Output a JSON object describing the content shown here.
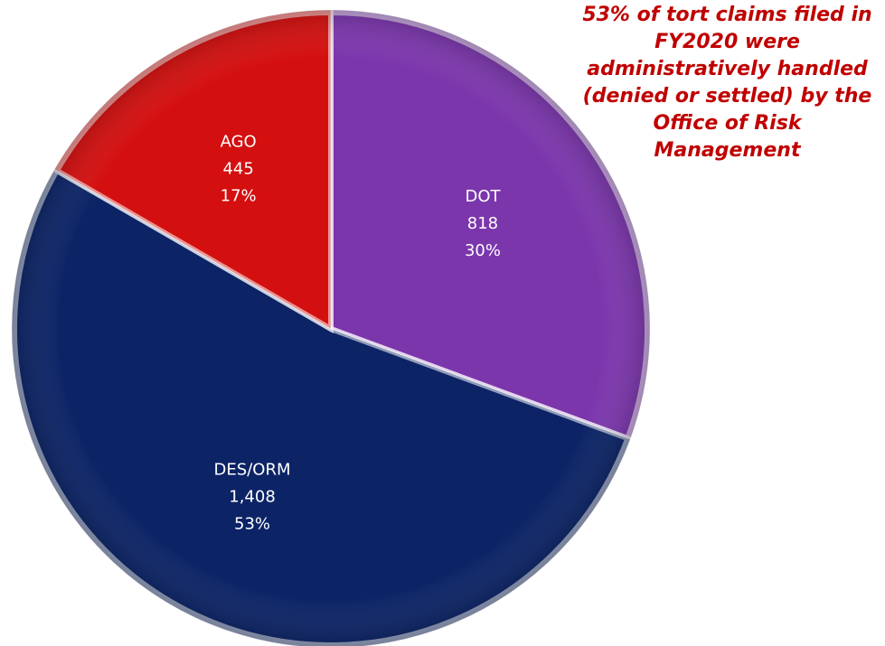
{
  "chart_data": {
    "type": "pie",
    "start_angle_deg": 0,
    "direction": "clockwise",
    "slices": [
      {
        "name": "DOT",
        "value": 818,
        "percent": "30%",
        "value_label": "818",
        "color": "#7b36ac"
      },
      {
        "name": "DES/ORM",
        "value": 1408,
        "percent": "53%",
        "value_label": "1,408",
        "color": "#0c2466"
      },
      {
        "name": "AGO",
        "value": 445,
        "percent": "17%",
        "value_label": "445",
        "color": "#d40f0f"
      }
    ]
  },
  "annotation": {
    "lines": [
      "53% of tort claims filed in",
      "FY2020 were",
      "administratively handled",
      "(denied or settled) by the",
      "Office of Risk",
      "Management"
    ],
    "color": "#c00000"
  }
}
